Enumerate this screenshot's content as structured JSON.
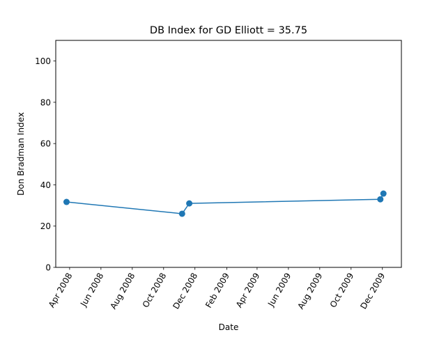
{
  "chart_data": {
    "type": "line",
    "title": "DB Index for GD Elliott = 35.75",
    "xlabel": "Date",
    "ylabel": "Don Bradman Index",
    "ylim": [
      0,
      110
    ],
    "xlim": [
      "2008-03-05",
      "2010-01-07"
    ],
    "yticks": [
      0,
      20,
      40,
      60,
      80,
      100
    ],
    "xticks": [
      {
        "date": "2008-04-01",
        "label": "Apr 2008"
      },
      {
        "date": "2008-06-01",
        "label": "Jun 2008"
      },
      {
        "date": "2008-08-01",
        "label": "Aug 2008"
      },
      {
        "date": "2008-10-01",
        "label": "Oct 2008"
      },
      {
        "date": "2008-12-01",
        "label": "Dec 2008"
      },
      {
        "date": "2009-02-01",
        "label": "Feb 2009"
      },
      {
        "date": "2009-04-01",
        "label": "Apr 2009"
      },
      {
        "date": "2009-06-01",
        "label": "Jun 2009"
      },
      {
        "date": "2009-08-01",
        "label": "Aug 2009"
      },
      {
        "date": "2009-10-01",
        "label": "Oct 2009"
      },
      {
        "date": "2009-12-01",
        "label": "Dec 2009"
      }
    ],
    "grid": false,
    "legend": "none",
    "series": [
      {
        "color": "#1f77b4",
        "points": [
          {
            "x": "2008-03-26",
            "y": 31.7
          },
          {
            "x": "2008-11-06",
            "y": 26.0
          },
          {
            "x": "2008-11-20",
            "y": 31.0
          },
          {
            "x": "2009-11-27",
            "y": 33.0
          },
          {
            "x": "2009-12-03",
            "y": 35.75
          }
        ]
      }
    ]
  }
}
